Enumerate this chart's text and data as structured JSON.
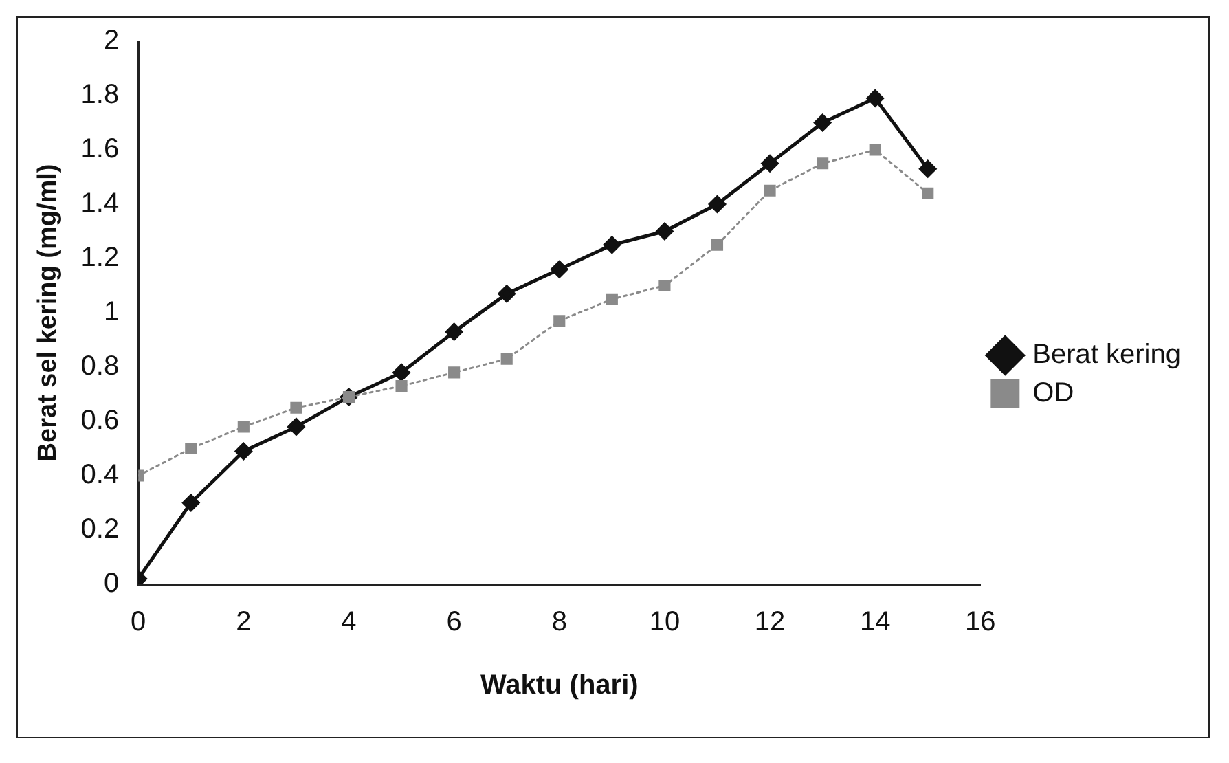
{
  "chart_data": {
    "type": "line",
    "xlabel": "Waktu (hari)",
    "ylabel": "Berat sel kering (mg/ml)",
    "x": [
      0,
      1,
      2,
      3,
      4,
      5,
      6,
      7,
      8,
      9,
      10,
      11,
      12,
      13,
      14,
      15
    ],
    "series": [
      {
        "name": "Berat kering",
        "color": "#111111",
        "marker": "diamond",
        "line_style": "solid",
        "values": [
          0.02,
          0.3,
          0.49,
          0.58,
          0.69,
          0.78,
          0.93,
          1.07,
          1.16,
          1.25,
          1.3,
          1.4,
          1.55,
          1.7,
          1.79,
          1.53
        ]
      },
      {
        "name": "OD",
        "color": "#8a8a8a",
        "marker": "square",
        "line_style": "dotted",
        "values": [
          0.4,
          0.5,
          0.58,
          0.65,
          0.69,
          0.73,
          0.78,
          0.83,
          0.97,
          1.05,
          1.1,
          1.25,
          1.45,
          1.55,
          1.6,
          1.44
        ]
      }
    ],
    "xlim": [
      0,
      16
    ],
    "xticks": [
      0,
      2,
      4,
      6,
      8,
      10,
      12,
      14,
      16
    ],
    "ylim": [
      0,
      2
    ],
    "yticks": [
      0,
      0.2,
      0.4,
      0.6,
      0.8,
      1,
      1.2,
      1.4,
      1.6,
      1.8,
      2
    ],
    "grid": false,
    "legend": "right"
  }
}
